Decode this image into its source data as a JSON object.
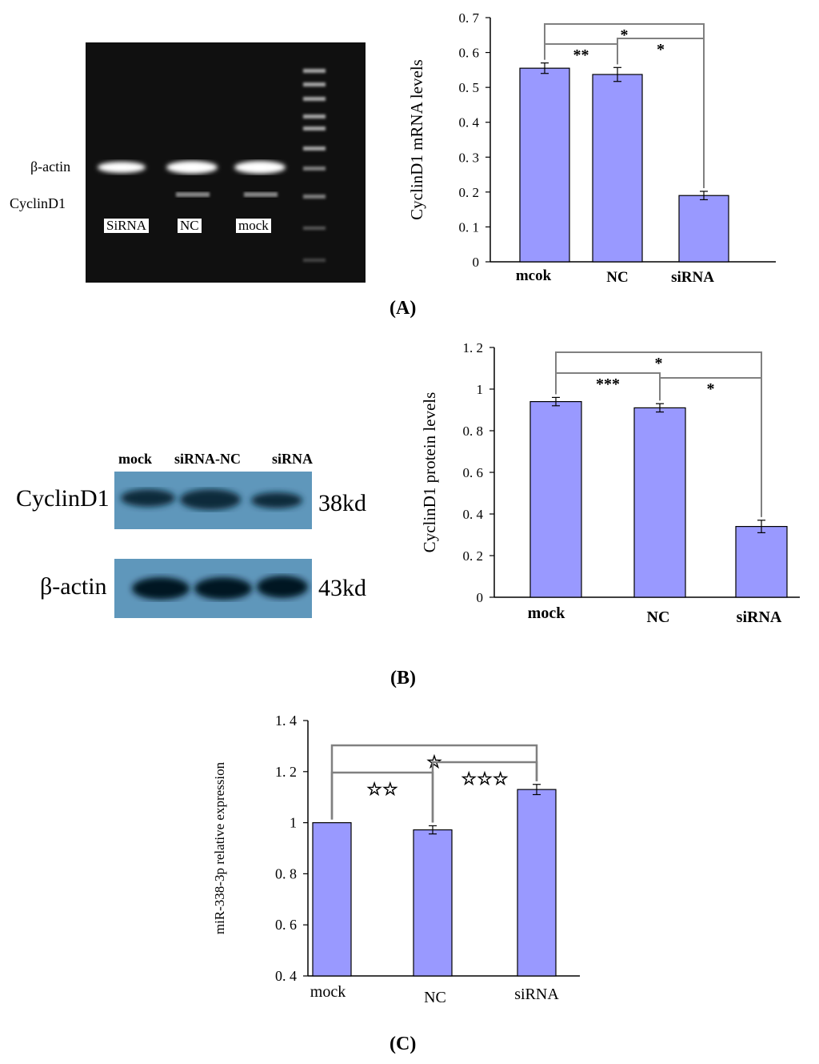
{
  "panels": {
    "A": "(A)",
    "B": "(B)",
    "C": "(C)"
  },
  "gel": {
    "left_labels": [
      "β-actin",
      "CyclinD1"
    ],
    "lane_labels": [
      "SiRNA",
      "NC",
      "mock"
    ]
  },
  "western": {
    "lane_labels": [
      "mock",
      "siRNA-NC",
      "siRNA"
    ],
    "row_labels": [
      "CyclinD1",
      "β-actin"
    ],
    "sizes": [
      "38kd",
      "43kd"
    ]
  },
  "colors": {
    "bar_fill": "#9999ff",
    "bar_stroke": "#000000",
    "bracket": "#808080",
    "gel_bg": "#101010",
    "blot_bg": "#5f97bb"
  },
  "chart_data": [
    {
      "id": "A",
      "type": "bar",
      "categories": [
        "mcok",
        "NC",
        "siRNA"
      ],
      "values": [
        0.555,
        0.537,
        0.19
      ],
      "errors": [
        0.015,
        0.02,
        0.012
      ],
      "ylabel": "CyclinD1 mRNA levels",
      "ylim": [
        0,
        0.7
      ],
      "yticks": [
        0,
        0.1,
        0.2,
        0.3,
        0.4,
        0.5,
        0.6,
        0.7
      ],
      "ytick_labels": [
        "0",
        "0. 1",
        "0. 2",
        "0. 3",
        "0. 4",
        "0. 5",
        "0. 6",
        "0. 7"
      ],
      "grid": false,
      "significance": [
        {
          "from": 0,
          "to": 2,
          "label": "*"
        },
        {
          "from": 0,
          "to": 1,
          "label": "**"
        },
        {
          "from": 1,
          "to": 2,
          "label": "*"
        }
      ]
    },
    {
      "id": "B",
      "type": "bar",
      "categories": [
        "mock",
        "NC",
        "siRNA"
      ],
      "values": [
        0.94,
        0.91,
        0.34
      ],
      "errors": [
        0.02,
        0.02,
        0.03
      ],
      "ylabel": "CyclinD1 protein levels",
      "ylim": [
        0,
        1.2
      ],
      "yticks": [
        0,
        0.2,
        0.4,
        0.6,
        0.8,
        1.0,
        1.2
      ],
      "ytick_labels": [
        "0",
        "0. 2",
        "0. 4",
        "0. 6",
        "0. 8",
        "1",
        "1. 2"
      ],
      "grid": false,
      "significance": [
        {
          "from": 0,
          "to": 2,
          "label": "*"
        },
        {
          "from": 0,
          "to": 1,
          "label": "***"
        },
        {
          "from": 1,
          "to": 2,
          "label": "*"
        }
      ]
    },
    {
      "id": "C",
      "type": "bar",
      "categories": [
        "mock",
        "NC",
        "siRNA"
      ],
      "values": [
        1.0,
        0.972,
        1.13
      ],
      "errors": [
        0,
        0.016,
        0.02
      ],
      "ylabel": "miR-338-3p relative expression",
      "ylim": [
        0.4,
        1.4
      ],
      "yticks": [
        0.4,
        0.6,
        0.8,
        1.0,
        1.2,
        1.4
      ],
      "ytick_labels": [
        "0. 4",
        "0. 6",
        "0. 8",
        "1",
        "1. 2",
        "1. 4"
      ],
      "grid": false,
      "significance": [
        {
          "from": 0,
          "to": 2,
          "label": "☆"
        },
        {
          "from": 0,
          "to": 1,
          "label": "☆☆"
        },
        {
          "from": 1,
          "to": 2,
          "label": "☆☆☆"
        }
      ]
    }
  ]
}
